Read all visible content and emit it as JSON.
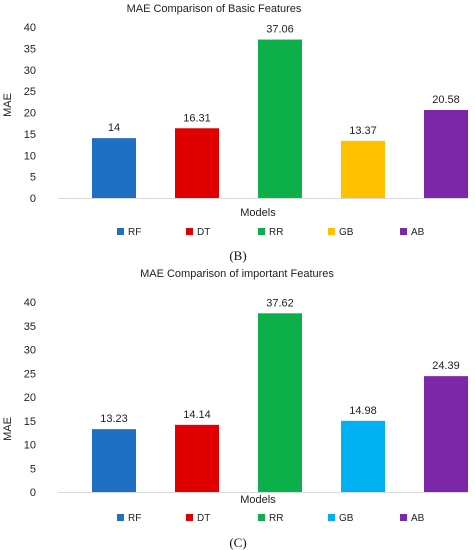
{
  "chart_data": [
    {
      "type": "bar",
      "title": "MAE Comparison of Basic Features",
      "xlabel": "Models",
      "ylabel": "MAE",
      "ylim": [
        0,
        40
      ],
      "yticks": [
        0,
        5,
        10,
        15,
        20,
        25,
        30,
        35,
        40
      ],
      "categories": [
        "RF",
        "DT",
        "RR",
        "GB",
        "AB"
      ],
      "values": [
        14,
        16.31,
        37.06,
        13.37,
        20.58
      ],
      "value_labels": [
        "14",
        "16.31",
        "37.06",
        "13.37",
        "20.58"
      ],
      "colors": [
        "#1f6fc5",
        "#e00000",
        "#0bb04a",
        "#ffc000",
        "#7c26a8"
      ],
      "legend": [
        "RF",
        "DT",
        "RR",
        "GB",
        "AB"
      ],
      "legend_position": "bottom",
      "grid": false,
      "panel_label": "(B)"
    },
    {
      "type": "bar",
      "title": "MAE Comparison of important Features",
      "xlabel": "Models",
      "ylabel": "MAE",
      "ylim": [
        0,
        40
      ],
      "yticks": [
        0,
        5,
        10,
        15,
        20,
        25,
        30,
        35,
        40
      ],
      "categories": [
        "RF",
        "DT",
        "RR",
        "GB",
        "AB"
      ],
      "values": [
        13.23,
        14.14,
        37.62,
        14.98,
        24.39
      ],
      "value_labels": [
        "13.23",
        "14.14",
        "37.62",
        "14.98",
        "24.39"
      ],
      "colors": [
        "#1f6fc5",
        "#e00000",
        "#0bb04a",
        "#00b0f0",
        "#7c26a8"
      ],
      "legend": [
        "RF",
        "DT",
        "RR",
        "GB",
        "AB"
      ],
      "legend_position": "bottom",
      "grid": false,
      "panel_label": "(C)"
    }
  ]
}
